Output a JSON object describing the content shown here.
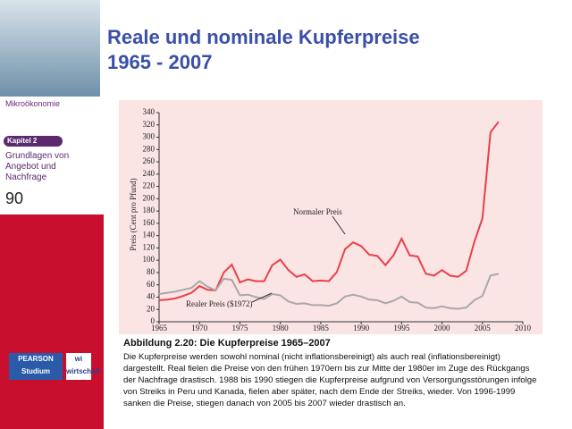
{
  "slide": {
    "title_line1": "Reale und nominale Kupferpreise",
    "title_line2": "1965 - 2007",
    "course": "Mikroökonomie",
    "chapter": "Kapitel 2",
    "chapter_title": "Grundlagen von Angebot und Nachfrage",
    "page": "90",
    "publisher": "PEARSON Studium",
    "imprint": "wi wirtschaft"
  },
  "chart_data": {
    "type": "line",
    "title": "Abbildung 2.20: Die Kupferpreise 1965–2007",
    "caption": "Die Kupferpreise werden sowohl nominal (nicht inflationsbereinigt) als auch real (inflationsbereinigt) dargestellt. Real fielen die Preise von den frühen 1970ern bis zur Mitte der 1980er im Zuge des Rückgangs der Nachfrage drastisch. 1988 bis 1990 stiegen die Kupferpreise aufgrund von Versorgungsstörungen infolge von Streiks in Peru und Kanada, fielen aber später, nach dem Ende der Streiks, wieder. Von 1996-1999 sanken die Preise, stiegen danach von 2005 bis 2007 wieder drastisch an.",
    "y_label": "Preis (Cent pro Pfund)",
    "x": [
      1965,
      1966,
      1967,
      1968,
      1969,
      1970,
      1971,
      1972,
      1973,
      1974,
      1975,
      1976,
      1977,
      1978,
      1979,
      1980,
      1981,
      1982,
      1983,
      1984,
      1985,
      1986,
      1987,
      1988,
      1989,
      1990,
      1991,
      1992,
      1993,
      1994,
      1995,
      1996,
      1997,
      1998,
      1999,
      2000,
      2001,
      2002,
      2003,
      2004,
      2005,
      2006,
      2007
    ],
    "series": [
      {
        "name": "Normaler Preis",
        "color": "#e8414a",
        "values": [
          35,
          36,
          38,
          42,
          47,
          58,
          52,
          51,
          80,
          93,
          64,
          69,
          66,
          66,
          92,
          101,
          84,
          73,
          77,
          66,
          67,
          66,
          81,
          118,
          129,
          123,
          109,
          107,
          92,
          108,
          135,
          108,
          106,
          78,
          75,
          84,
          75,
          73,
          83,
          130,
          168,
          308,
          325
        ]
      },
      {
        "name": "Realer Preis ($1972)",
        "color": "#a8a8a8",
        "values": [
          45,
          47,
          49,
          52,
          55,
          66,
          57,
          51,
          70,
          68,
          43,
          44,
          40,
          37,
          45,
          43,
          33,
          29,
          30,
          27,
          27,
          26,
          30,
          41,
          44,
          41,
          36,
          35,
          30,
          34,
          41,
          32,
          31,
          23,
          22,
          25,
          22,
          21,
          23,
          35,
          42,
          75,
          78
        ]
      }
    ],
    "xlim": [
      1965,
      2010
    ],
    "xticks": [
      1965,
      1970,
      1975,
      1980,
      1985,
      1990,
      1995,
      2000,
      2005,
      2010
    ],
    "ylim": [
      0,
      340
    ],
    "yticks": [
      0,
      20,
      40,
      60,
      80,
      100,
      120,
      140,
      160,
      180,
      200,
      220,
      240,
      260,
      280,
      300,
      320,
      340
    ],
    "grid": false
  }
}
